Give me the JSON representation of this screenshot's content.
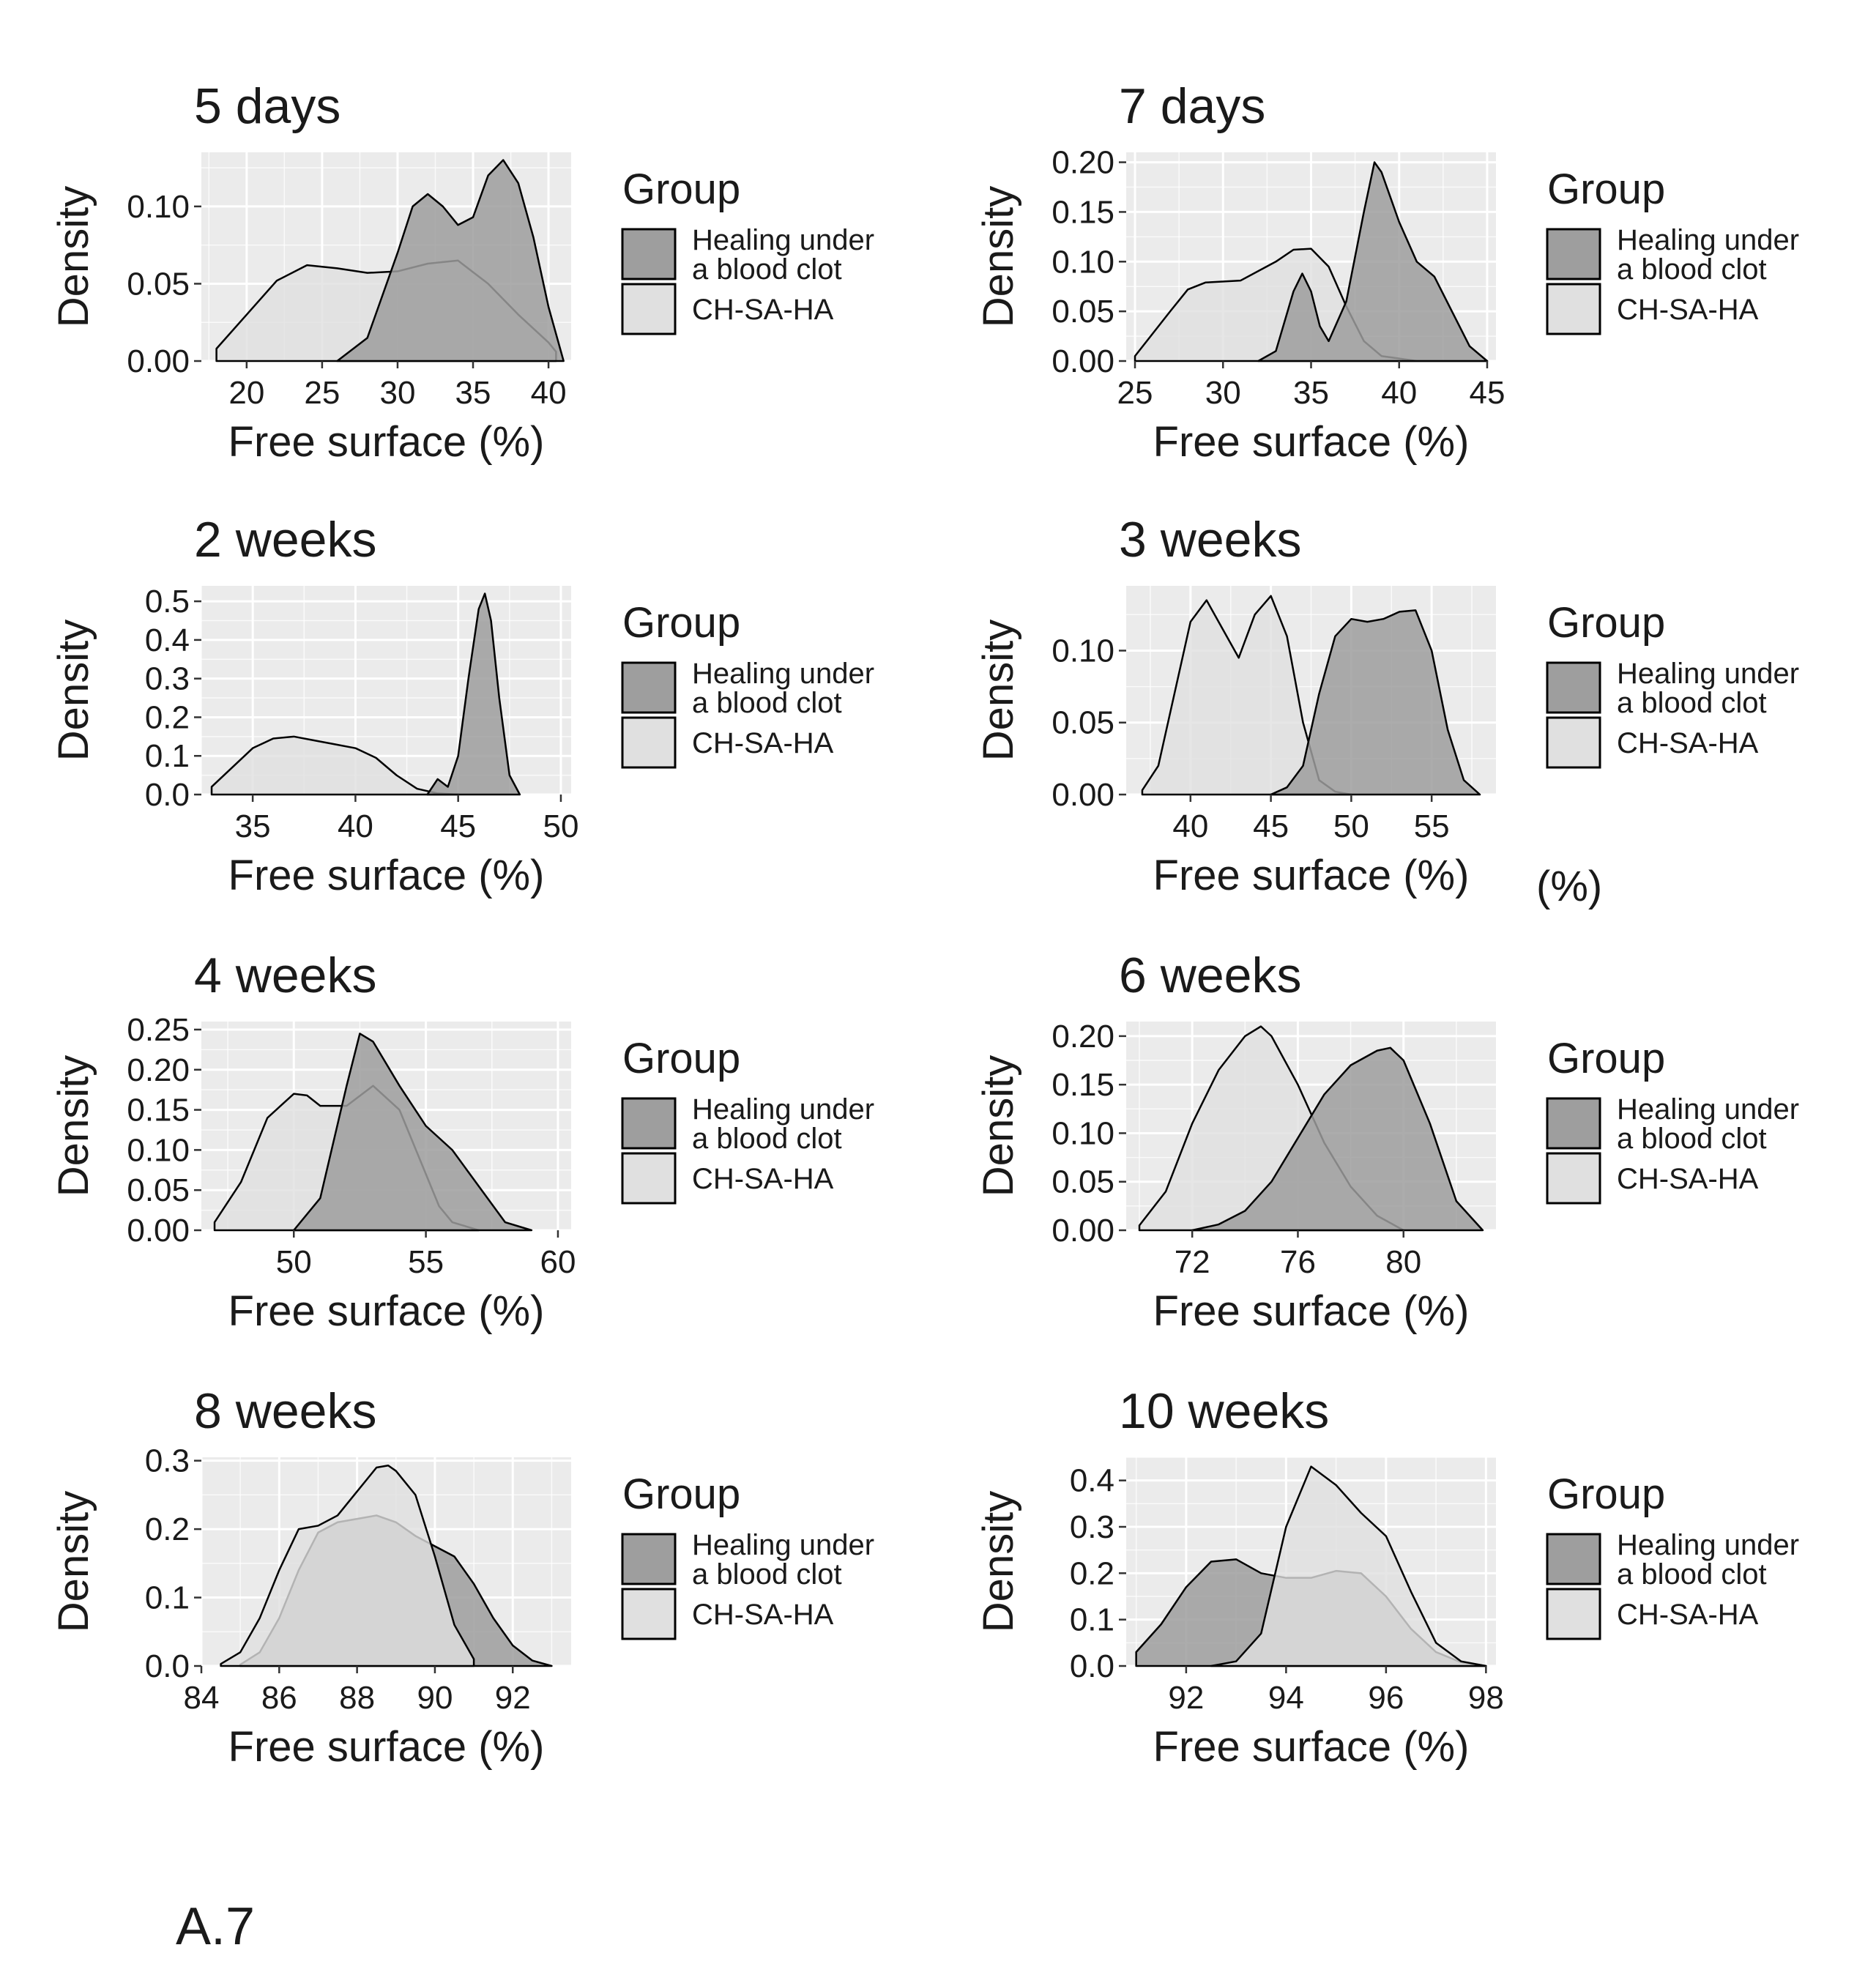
{
  "figure": {
    "caption": "A.7",
    "stray_label": "(%)",
    "colors": {
      "panel_bg": "#ebebeb",
      "grid_major": "#ffffff",
      "healing_fill": "#9e9e9e",
      "chsaha_fill": "#e0e0e0",
      "outline": "#000000"
    }
  },
  "chart_data": [
    {
      "type": "area",
      "title": "5 days",
      "xlabel": "Free surface (%)",
      "ylabel": "Density",
      "xlim": [
        17,
        41.5
      ],
      "ylim": [
        0,
        0.135
      ],
      "xticks": [
        20,
        25,
        30,
        35,
        40
      ],
      "yticks": [
        0,
        0.05,
        0.1
      ],
      "ytick_labels": [
        "0.00",
        "0.05",
        "0.10"
      ],
      "legend": {
        "title": "Group",
        "entries": [
          "Healing under\na blood clot",
          "CH-SA-HA"
        ],
        "position": "right"
      },
      "series": [
        {
          "name": "CH-SA-HA",
          "x": [
            18,
            20,
            22,
            24,
            26,
            28,
            30,
            32,
            34,
            36,
            38,
            40,
            40.5
          ],
          "y": [
            0.008,
            0.03,
            0.052,
            0.062,
            0.06,
            0.057,
            0.058,
            0.063,
            0.065,
            0.05,
            0.03,
            0.012,
            0.006
          ]
        },
        {
          "name": "Healing under a blood clot",
          "x": [
            26,
            28,
            30,
            31,
            32,
            33,
            34,
            35,
            36,
            37,
            38,
            39,
            40,
            41
          ],
          "y": [
            0,
            0.015,
            0.07,
            0.1,
            0.108,
            0.1,
            0.088,
            0.093,
            0.12,
            0.13,
            0.115,
            0.08,
            0.035,
            0
          ]
        }
      ]
    },
    {
      "type": "area",
      "title": "7 days",
      "xlabel": "Free surface (%)",
      "ylabel": "Density",
      "xlim": [
        24.5,
        45.5
      ],
      "ylim": [
        0,
        0.21
      ],
      "xticks": [
        25,
        30,
        35,
        40,
        45
      ],
      "yticks": [
        0,
        0.05,
        0.1,
        0.15,
        0.2
      ],
      "ytick_labels": [
        "0.00",
        "0.05",
        "0.10",
        "0.15",
        "0.20"
      ],
      "legend": {
        "title": "Group",
        "entries": [
          "Healing under\na blood clot",
          "CH-SA-HA"
        ],
        "position": "right"
      },
      "series": [
        {
          "name": "CH-SA-HA",
          "x": [
            25,
            27,
            28,
            29,
            31,
            33,
            34,
            35,
            36,
            37,
            38,
            39,
            41,
            43,
            45
          ],
          "y": [
            0.005,
            0.05,
            0.072,
            0.079,
            0.081,
            0.1,
            0.112,
            0.113,
            0.095,
            0.055,
            0.02,
            0.005,
            0,
            0,
            0
          ]
        },
        {
          "name": "Healing under a blood clot",
          "x": [
            32,
            33,
            34,
            34.5,
            35,
            35.5,
            36,
            37,
            38,
            38.6,
            39,
            40,
            41,
            42,
            43,
            44,
            45
          ],
          "y": [
            0,
            0.01,
            0.07,
            0.088,
            0.07,
            0.035,
            0.02,
            0.06,
            0.15,
            0.2,
            0.19,
            0.14,
            0.1,
            0.085,
            0.05,
            0.015,
            0
          ]
        }
      ]
    },
    {
      "type": "area",
      "title": "2 weeks",
      "xlabel": "Free surface (%)",
      "ylabel": "Density",
      "xlim": [
        32.5,
        50.5
      ],
      "ylim": [
        0,
        0.54
      ],
      "xticks": [
        35,
        40,
        45,
        50
      ],
      "yticks": [
        0,
        0.1,
        0.2,
        0.3,
        0.4,
        0.5
      ],
      "ytick_labels": [
        "0.0",
        "0.1",
        "0.2",
        "0.3",
        "0.4",
        "0.5"
      ],
      "legend": {
        "title": "Group",
        "entries": [
          "Healing under\na blood clot",
          "CH-SA-HA"
        ],
        "position": "right"
      },
      "series": [
        {
          "name": "CH-SA-HA",
          "x": [
            33,
            34,
            35,
            36,
            37,
            38,
            39,
            40,
            41,
            42,
            43,
            44,
            45
          ],
          "y": [
            0.02,
            0.07,
            0.12,
            0.145,
            0.15,
            0.14,
            0.13,
            0.12,
            0.095,
            0.05,
            0.015,
            0.003,
            0
          ]
        },
        {
          "name": "Healing under a blood clot",
          "x": [
            43.5,
            44,
            44.5,
            45,
            45.5,
            46,
            46.3,
            46.6,
            47,
            47.5,
            48
          ],
          "y": [
            0,
            0.04,
            0.02,
            0.1,
            0.3,
            0.48,
            0.52,
            0.45,
            0.25,
            0.05,
            0
          ]
        }
      ]
    },
    {
      "type": "area",
      "title": "3 weeks",
      "xlabel": "Free surface (%)",
      "ylabel": "Density",
      "xlim": [
        36,
        59
      ],
      "ylim": [
        0,
        0.145
      ],
      "xticks": [
        40,
        45,
        50,
        55
      ],
      "yticks": [
        0,
        0.05,
        0.1
      ],
      "ytick_labels": [
        "0.00",
        "0.05",
        "0.10"
      ],
      "legend": {
        "title": "Group",
        "entries": [
          "Healing under\na blood clot",
          "CH-SA-HA"
        ],
        "position": "right"
      },
      "series": [
        {
          "name": "CH-SA-HA",
          "x": [
            37,
            38,
            39,
            40,
            41,
            42,
            43,
            44,
            45,
            46,
            47,
            48,
            49,
            50
          ],
          "y": [
            0.003,
            0.02,
            0.07,
            0.12,
            0.135,
            0.115,
            0.095,
            0.125,
            0.138,
            0.11,
            0.05,
            0.01,
            0.002,
            0
          ]
        },
        {
          "name": "Healing under a blood clot",
          "x": [
            45,
            46,
            47,
            48,
            49,
            50,
            51,
            52,
            53,
            54,
            55,
            56,
            57,
            58
          ],
          "y": [
            0,
            0.005,
            0.02,
            0.07,
            0.11,
            0.122,
            0.12,
            0.122,
            0.127,
            0.128,
            0.1,
            0.045,
            0.01,
            0
          ]
        }
      ]
    },
    {
      "type": "area",
      "title": "4 weeks",
      "xlabel": "Free surface (%)",
      "ylabel": "Density",
      "xlim": [
        46.5,
        60.5
      ],
      "ylim": [
        0,
        0.26
      ],
      "xticks": [
        50,
        55,
        60
      ],
      "yticks": [
        0,
        0.05,
        0.1,
        0.15,
        0.2,
        0.25
      ],
      "ytick_labels": [
        "0.00",
        "0.05",
        "0.10",
        "0.15",
        "0.20",
        "0.25"
      ],
      "legend": {
        "title": "Group",
        "entries": [
          "Healing under\na blood clot",
          "CH-SA-HA"
        ],
        "position": "right"
      },
      "series": [
        {
          "name": "CH-SA-HA",
          "x": [
            47,
            48,
            49,
            50,
            50.5,
            51,
            52,
            53,
            54,
            55,
            55.5,
            56,
            57
          ],
          "y": [
            0.01,
            0.06,
            0.14,
            0.17,
            0.168,
            0.155,
            0.155,
            0.18,
            0.15,
            0.07,
            0.03,
            0.01,
            0
          ]
        },
        {
          "name": "Healing under a blood clot",
          "x": [
            50,
            51,
            52,
            52.5,
            53,
            54,
            55,
            56,
            57,
            58,
            59
          ],
          "y": [
            0,
            0.04,
            0.18,
            0.245,
            0.235,
            0.18,
            0.13,
            0.1,
            0.055,
            0.01,
            0
          ]
        }
      ]
    },
    {
      "type": "area",
      "title": "6 weeks",
      "xlabel": "Free surface (%)",
      "ylabel": "Density",
      "xlim": [
        69.5,
        83.5
      ],
      "ylim": [
        0,
        0.215
      ],
      "xticks": [
        72,
        76,
        80
      ],
      "yticks": [
        0,
        0.05,
        0.1,
        0.15,
        0.2
      ],
      "ytick_labels": [
        "0.00",
        "0.05",
        "0.10",
        "0.15",
        "0.20"
      ],
      "legend": {
        "title": "Group",
        "entries": [
          "Healing under\na blood clot",
          "CH-SA-HA"
        ],
        "position": "right"
      },
      "series": [
        {
          "name": "CH-SA-HA",
          "x": [
            70,
            71,
            72,
            73,
            74,
            74.6,
            75,
            76,
            77,
            78,
            79,
            80
          ],
          "y": [
            0.005,
            0.04,
            0.11,
            0.165,
            0.2,
            0.21,
            0.2,
            0.15,
            0.09,
            0.045,
            0.015,
            0
          ]
        },
        {
          "name": "Healing under a blood clot",
          "x": [
            72,
            73,
            74,
            75,
            76,
            77,
            78,
            79,
            79.5,
            80,
            81,
            82,
            83
          ],
          "y": [
            0,
            0.006,
            0.02,
            0.05,
            0.095,
            0.14,
            0.17,
            0.185,
            0.188,
            0.175,
            0.11,
            0.03,
            0
          ]
        }
      ]
    },
    {
      "type": "area",
      "title": "8 weeks",
      "xlabel": "Free surface (%)",
      "ylabel": "Density",
      "xlim": [
        84,
        93.5
      ],
      "ylim": [
        0,
        0.305
      ],
      "xticks": [
        84,
        86,
        88,
        90,
        92
      ],
      "yticks": [
        0,
        0.1,
        0.2,
        0.3
      ],
      "ytick_labels": [
        "0.0",
        "0.1",
        "0.2",
        "0.3"
      ],
      "legend": {
        "title": "Group",
        "entries": [
          "Healing under\na blood clot",
          "CH-SA-HA"
        ],
        "position": "right"
      },
      "series": [
        {
          "name": "Healing under a blood clot",
          "x": [
            85,
            85.5,
            86,
            86.5,
            87,
            87.5,
            88,
            88.5,
            89,
            89.5,
            90,
            90.5,
            91,
            91.5,
            92,
            92.5,
            93
          ],
          "y": [
            0.002,
            0.02,
            0.07,
            0.14,
            0.195,
            0.21,
            0.215,
            0.22,
            0.21,
            0.19,
            0.175,
            0.16,
            0.12,
            0.07,
            0.03,
            0.008,
            0
          ]
        },
        {
          "name": "CH-SA-HA",
          "x": [
            84.5,
            85,
            85.5,
            86,
            86.5,
            87,
            87.5,
            88,
            88.5,
            88.8,
            89,
            89.5,
            90,
            90.5,
            91
          ],
          "y": [
            0.003,
            0.02,
            0.07,
            0.14,
            0.2,
            0.205,
            0.22,
            0.255,
            0.29,
            0.293,
            0.285,
            0.25,
            0.16,
            0.06,
            0.01
          ]
        }
      ]
    },
    {
      "type": "area",
      "title": "10 weeks",
      "xlabel": "Free surface (%)",
      "ylabel": "Density",
      "xlim": [
        90.8,
        98.2
      ],
      "ylim": [
        0,
        0.45
      ],
      "xticks": [
        92,
        94,
        96,
        98
      ],
      "yticks": [
        0,
        0.1,
        0.2,
        0.3,
        0.4
      ],
      "ytick_labels": [
        "0.0",
        "0.1",
        "0.2",
        "0.3",
        "0.4"
      ],
      "legend": {
        "title": "Group",
        "entries": [
          "Healing under\na blood clot",
          "CH-SA-HA"
        ],
        "position": "right"
      },
      "series": [
        {
          "name": "Healing under a blood clot",
          "x": [
            91,
            91.5,
            92,
            92.5,
            93,
            93.5,
            94,
            94.5,
            95,
            95.5,
            96,
            96.5,
            97,
            97.5,
            98
          ],
          "y": [
            0.03,
            0.09,
            0.17,
            0.225,
            0.23,
            0.2,
            0.19,
            0.19,
            0.205,
            0.2,
            0.15,
            0.08,
            0.03,
            0.008,
            0
          ]
        },
        {
          "name": "CH-SA-HA",
          "x": [
            92.5,
            93,
            93.5,
            94,
            94.5,
            95,
            95.5,
            96,
            96.5,
            97,
            97.5,
            98
          ],
          "y": [
            0,
            0.01,
            0.07,
            0.3,
            0.43,
            0.39,
            0.33,
            0.28,
            0.16,
            0.05,
            0.01,
            0
          ]
        }
      ]
    }
  ]
}
